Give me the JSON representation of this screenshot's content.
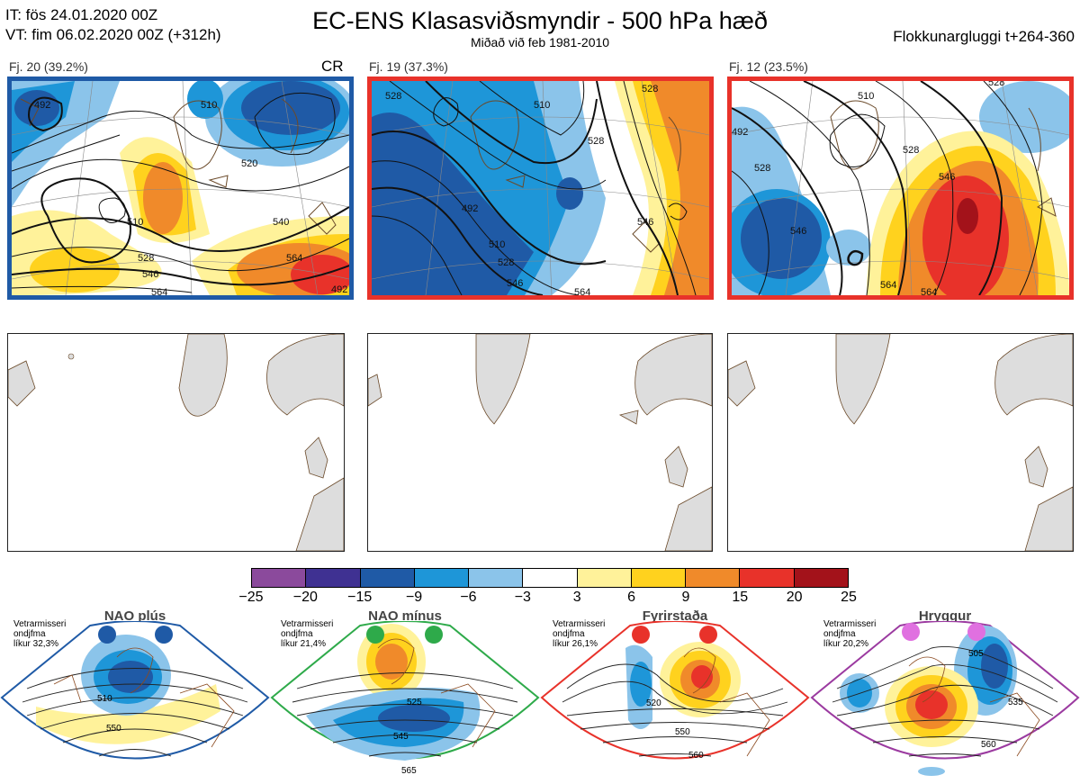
{
  "header": {
    "init_time": "IT: fös 24.01.2020 00Z",
    "valid_time": "VT: fim 06.02.2020 00Z  (+312h)",
    "title": "EC-ENS Klasasviðsmyndir - 500 hPa hæð",
    "subtitle": "Miðað við feb 1981-2010",
    "window": "Flokkunargluggi t+264-360"
  },
  "clusters": [
    {
      "label": "Fj. 20 (39.2%)",
      "tag": "CR",
      "border_color": "#1f5aa6",
      "contour_labels": [
        "510",
        "520",
        "540",
        "510",
        "528",
        "546",
        "564",
        "564",
        "492",
        "492"
      ]
    },
    {
      "label": "Fj. 19 (37.3%)",
      "tag": "",
      "border_color": "#e8322a",
      "contour_labels": [
        "528",
        "510",
        "528",
        "492",
        "510",
        "528",
        "546",
        "564",
        "546",
        "528"
      ]
    },
    {
      "label": "Fj. 12 (23.5%)",
      "tag": "",
      "border_color": "#e8322a",
      "contour_labels": [
        "528",
        "510",
        "528",
        "546",
        "528",
        "546",
        "564",
        "492",
        "564"
      ]
    }
  ],
  "legend": {
    "colors": [
      "#8b4a9c",
      "#3f3192",
      "#1f5aa6",
      "#1e96d8",
      "#8bc4ea",
      "#ffffff",
      "#fff29a",
      "#ffd21e",
      "#f08a2a",
      "#e8322a",
      "#a3121a"
    ],
    "ticks": [
      "−25",
      "−20",
      "−15",
      "−9",
      "−6",
      "−3",
      "3",
      "6",
      "9",
      "15",
      "20",
      "25"
    ]
  },
  "regimes": [
    {
      "name": "NAO plús",
      "prob_lines": [
        "Vetrarmisseri",
        "ondjfma",
        "líkur 32,3%"
      ],
      "color": "#1f5aa6",
      "labels": [
        "510",
        "550"
      ]
    },
    {
      "name": "NAO mínus",
      "prob_lines": [
        "Vetrarmisseri",
        "ondjfma",
        "líkur 21,4%"
      ],
      "color": "#2eaa4a",
      "labels": [
        "525",
        "545",
        "565"
      ]
    },
    {
      "name": "Fyrirstaða",
      "prob_lines": [
        "Vetrarmisseri",
        "ondjfma",
        "líkur 26,1%"
      ],
      "color": "#e8322a",
      "labels": [
        "520",
        "550",
        "560"
      ]
    },
    {
      "name": "Hryggur",
      "prob_lines": [
        "Vetrarmisseri",
        "ondjfma",
        "líkur 20,2%"
      ],
      "color": "#e070e0",
      "labels": [
        "505",
        "535",
        "560"
      ]
    }
  ]
}
